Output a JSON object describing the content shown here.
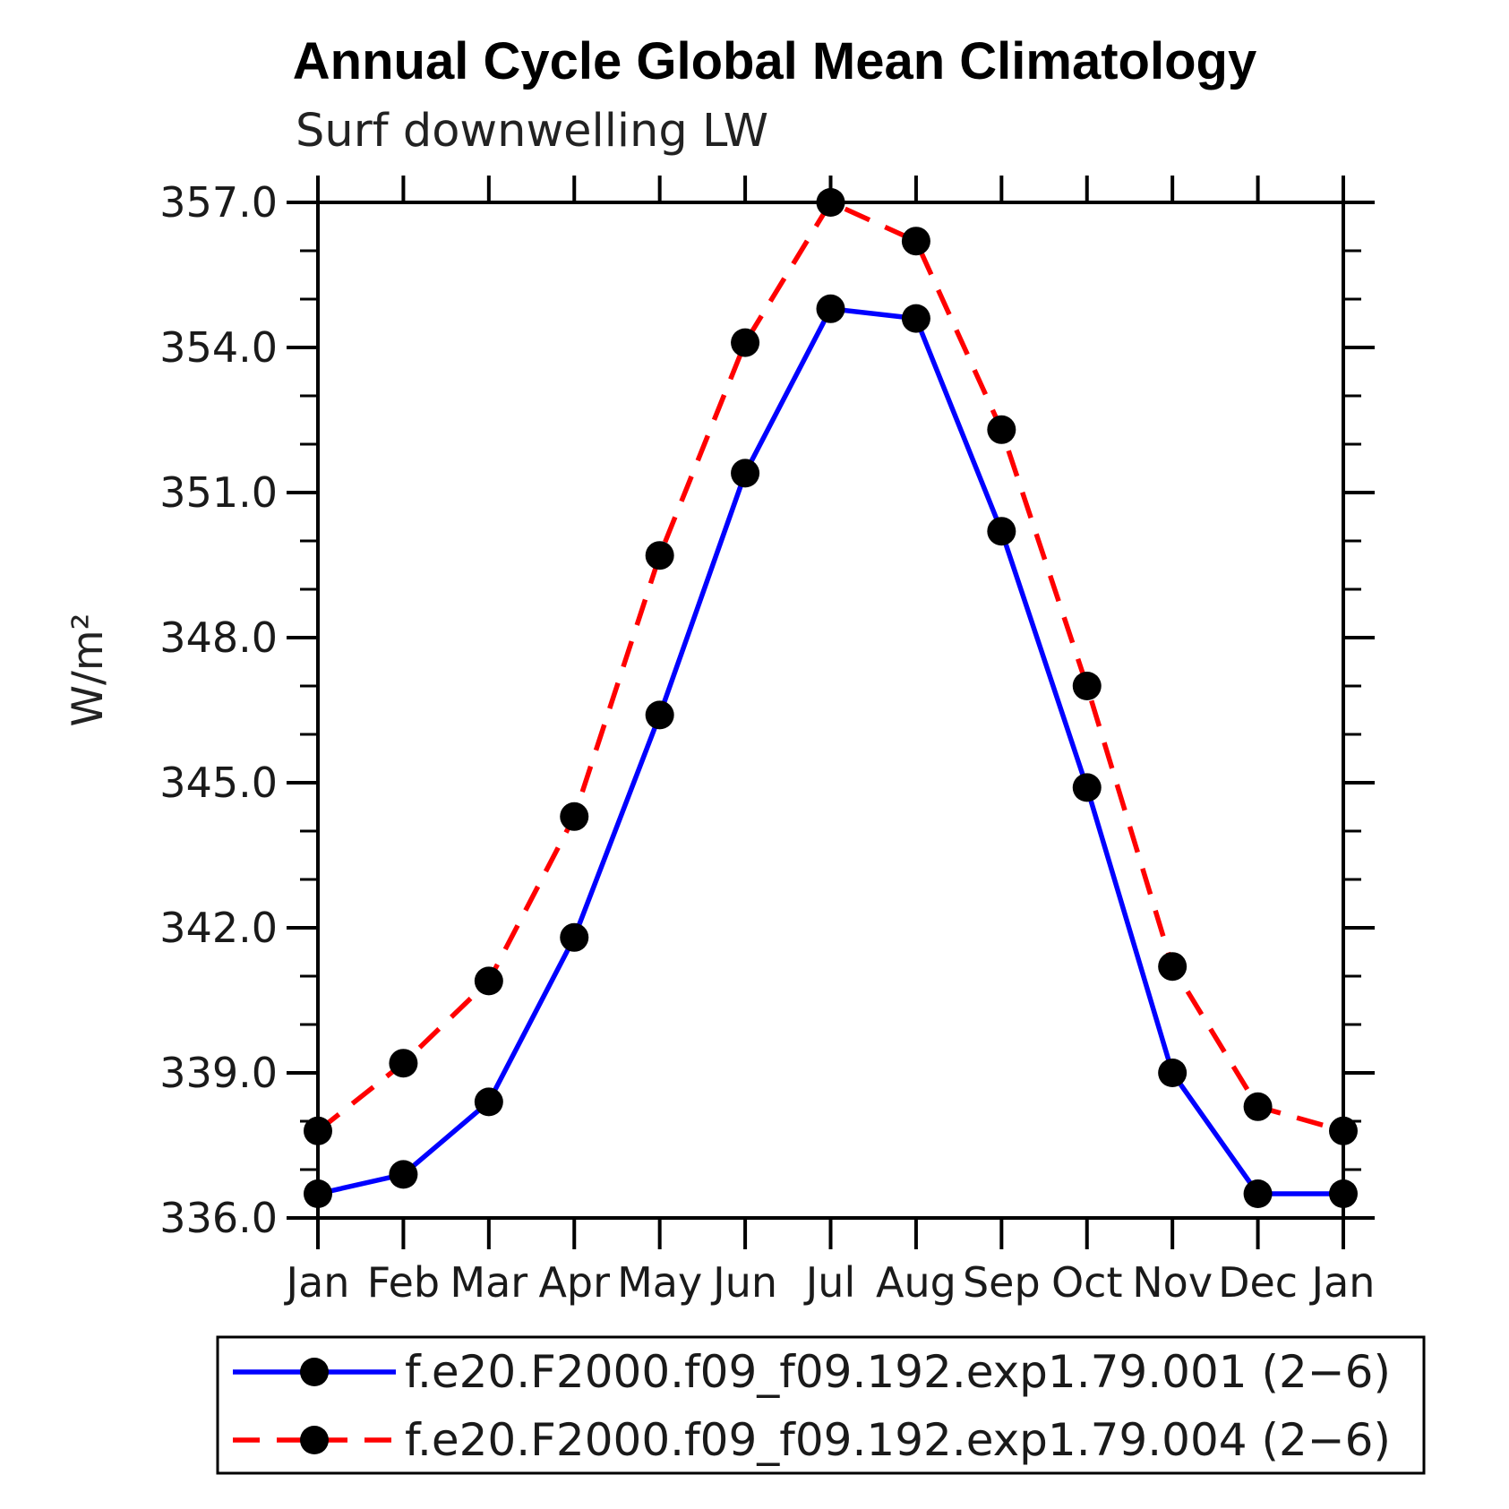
{
  "chart_data": {
    "type": "line",
    "title": "Annual Cycle Global Mean Climatology",
    "subtitle": "Surf downwelling LW",
    "ylabel": "W/m²",
    "categories": [
      "Jan",
      "Feb",
      "Mar",
      "Apr",
      "May",
      "Jun",
      "Jul",
      "Aug",
      "Sep",
      "Oct",
      "Nov",
      "Dec",
      "Jan"
    ],
    "ylim": [
      336.0,
      357.0
    ],
    "ytick_major_interval": 3.0,
    "ytick_minor_interval": 1.0,
    "ytick_labels": [
      "336.0",
      "339.0",
      "342.0",
      "345.0",
      "348.0",
      "351.0",
      "354.0",
      "357.0"
    ],
    "grid": false,
    "legend_position": "bottom",
    "marker": {
      "shape": "filled-circle",
      "color": "#000000"
    },
    "series": [
      {
        "name": "f.e20.F2000.f09_f09.192.exp1.79.001 (2−6)",
        "color": "#0000ff",
        "style": "solid",
        "values": [
          336.5,
          336.9,
          338.4,
          341.8,
          346.4,
          351.4,
          354.8,
          354.6,
          350.2,
          344.9,
          339.0,
          336.5,
          336.5
        ]
      },
      {
        "name": "f.e20.F2000.f09_f09.192.exp1.79.004 (2−6)",
        "color": "#ff0000",
        "style": "dashed",
        "values": [
          337.8,
          339.2,
          340.9,
          344.3,
          349.7,
          354.1,
          357.0,
          356.2,
          352.3,
          347.0,
          341.2,
          338.3,
          337.8
        ]
      }
    ]
  }
}
